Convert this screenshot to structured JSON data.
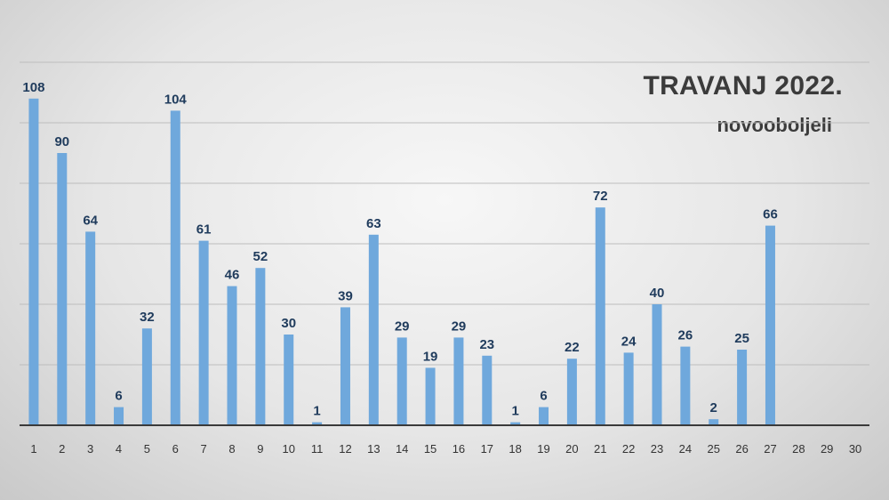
{
  "chart_data": {
    "type": "bar",
    "title": "TRAVANJ 2022.",
    "subtitle": "novooboljeli",
    "categories": [
      "1",
      "2",
      "3",
      "4",
      "5",
      "6",
      "7",
      "8",
      "9",
      "10",
      "11",
      "12",
      "13",
      "14",
      "15",
      "16",
      "17",
      "18",
      "19",
      "20",
      "21",
      "22",
      "23",
      "24",
      "25",
      "26",
      "27",
      "28",
      "29",
      "30"
    ],
    "values": [
      108,
      90,
      64,
      6,
      32,
      104,
      61,
      46,
      52,
      30,
      1,
      39,
      63,
      29,
      19,
      29,
      23,
      1,
      6,
      22,
      72,
      24,
      40,
      26,
      2,
      25,
      66,
      null,
      null,
      null
    ],
    "ylim": [
      0,
      120
    ],
    "grid": true,
    "legend": "none",
    "colors": {
      "bar": "#6fa8dc",
      "label": "#1f3b5c",
      "grid": "#bdbdbd",
      "axis": "#3a3a3a",
      "tick": "#333333"
    }
  }
}
